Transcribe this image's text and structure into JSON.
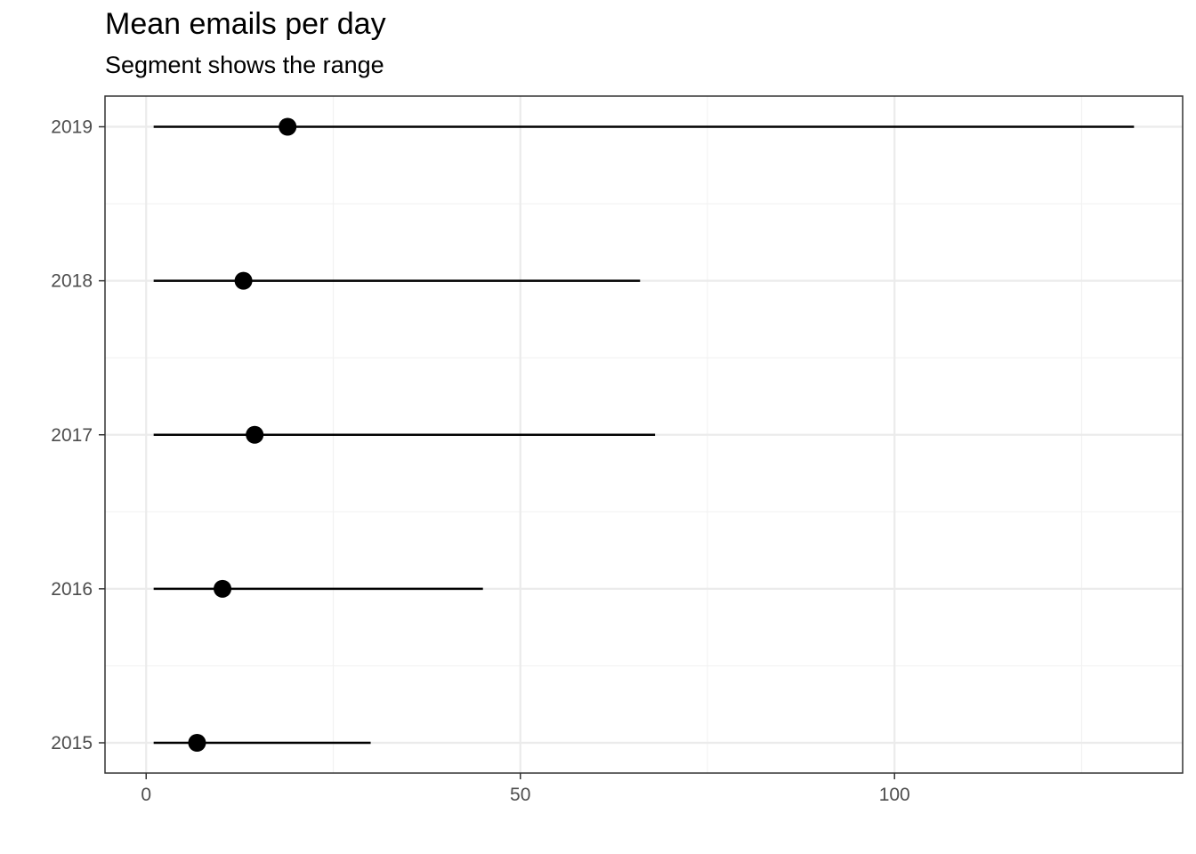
{
  "title": "Mean emails per day",
  "subtitle": "Segment shows the range",
  "chart_data": {
    "type": "dot-range",
    "title": "Mean emails per day",
    "subtitle": "Segment shows the range",
    "xlabel": "",
    "ylabel": "",
    "xlim": [
      -5.5,
      138.5
    ],
    "x_ticks": [
      0,
      50,
      100
    ],
    "categories": [
      "2015",
      "2016",
      "2017",
      "2018",
      "2019"
    ],
    "series": [
      {
        "category": "2015",
        "min": 1,
        "mean": 6.8,
        "max": 30
      },
      {
        "category": "2016",
        "min": 1,
        "mean": 10.2,
        "max": 45
      },
      {
        "category": "2017",
        "min": 1,
        "mean": 14.5,
        "max": 68
      },
      {
        "category": "2018",
        "min": 1,
        "mean": 13,
        "max": 66
      },
      {
        "category": "2019",
        "min": 1,
        "mean": 18.9,
        "max": 132
      }
    ],
    "grid": true,
    "colors": {
      "mark": "#000000",
      "grid_major": "#ebebeb",
      "grid_minor": "#f2f2f2",
      "panel_border": "#333333",
      "tick_text": "#4d4d4d"
    }
  }
}
